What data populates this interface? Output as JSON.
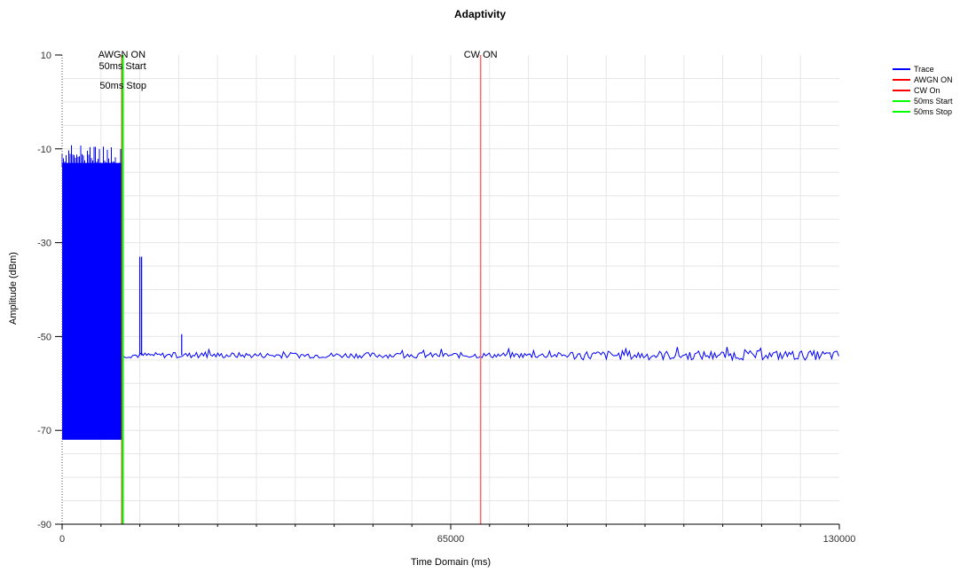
{
  "chart_data": {
    "type": "line",
    "title": "Adaptivity",
    "xlabel": "Time Domain (ms)",
    "ylabel": "Amplitude (dBm)",
    "xlim": [
      0,
      130000
    ],
    "ylim": [
      -90,
      10
    ],
    "x_ticks": [
      0,
      65000,
      130000
    ],
    "y_ticks": [
      10,
      -10,
      -30,
      -50,
      -70,
      -90
    ],
    "grid": true,
    "legend_position": "top-right",
    "legend": [
      {
        "name": "Trace",
        "color": "#0000ff"
      },
      {
        "name": "AWGN ON",
        "color": "#ff0000"
      },
      {
        "name": "CW On",
        "color": "#ff0000"
      },
      {
        "name": "50ms Start",
        "color": "#00ff00"
      },
      {
        "name": "50ms Stop",
        "color": "#00ff00"
      }
    ],
    "markers": [
      {
        "label": "AWGN ON",
        "x": 10000,
        "color": "#ff0000"
      },
      {
        "label": "50ms Start",
        "x": 10100,
        "color": "#00ff00"
      },
      {
        "label": "50ms Stop",
        "x": 10200,
        "color": "#00ff00"
      },
      {
        "label": "CW ON",
        "x": 70000,
        "color": "#ff6666"
      }
    ],
    "series": [
      {
        "name": "Trace",
        "color": "#0000ff",
        "segments": [
          {
            "x_start": 0,
            "x_end": 10000,
            "y_high": -13,
            "y_low": -72,
            "peak_max": -7
          },
          {
            "x_start": 10000,
            "x_end": 130000,
            "y_mean": -54,
            "noise": 0.6
          }
        ],
        "spikes": [
          {
            "x": 13000,
            "y": -33
          },
          {
            "x": 13300,
            "y": -33
          },
          {
            "x": 20000,
            "y": -49.5
          }
        ]
      }
    ]
  }
}
